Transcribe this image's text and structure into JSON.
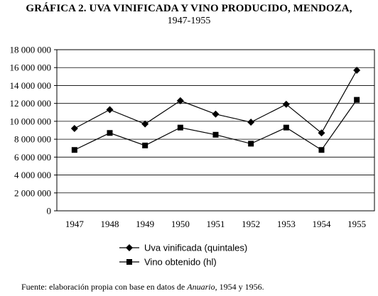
{
  "chart_data": {
    "type": "line",
    "title": "GRÁFICA 2. UVA VINIFICADA Y VINO PRODUCIDO, MENDOZA,",
    "subtitle": "1947-1955",
    "categories": [
      "1947",
      "1948",
      "1949",
      "1950",
      "1951",
      "1952",
      "1953",
      "1954",
      "1955"
    ],
    "y_ticks": [
      "0",
      "2 000 000",
      "4 000 000",
      "6 000 000",
      "8 000 000",
      "10 000 000",
      "12 000 000",
      "14 000 000",
      "16 000 000",
      "18 000 000"
    ],
    "ylim": [
      0,
      18000000
    ],
    "grid": true,
    "legend_position": "bottom",
    "series": [
      {
        "name": "Uva vinificada (quintales)",
        "marker": "diamond",
        "color": "#000000",
        "values": [
          9200000,
          11300000,
          9700000,
          12300000,
          10800000,
          9900000,
          11900000,
          8700000,
          15700000
        ]
      },
      {
        "name": "Vino obtenido (hl)",
        "marker": "square",
        "color": "#000000",
        "values": [
          6800000,
          8700000,
          7300000,
          9300000,
          8500000,
          7500000,
          9300000,
          6800000,
          12400000
        ]
      }
    ]
  },
  "source": {
    "prefix": "Fuente: elaboración propia con base en datos de ",
    "italic": "Anuario",
    "suffix": ", 1954 y 1956."
  }
}
